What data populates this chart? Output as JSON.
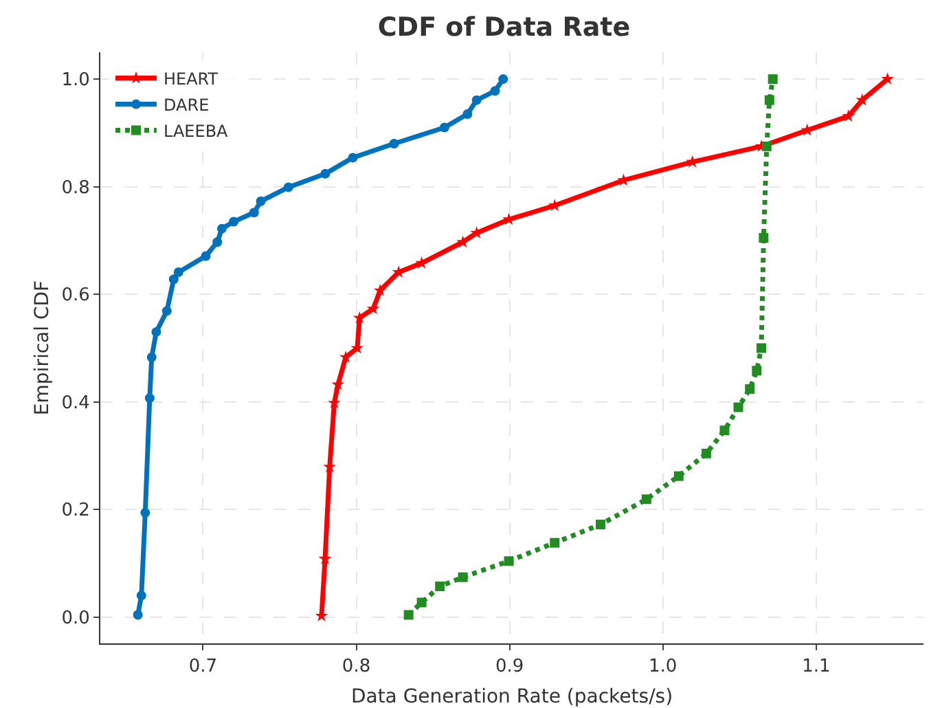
{
  "chart_data": {
    "type": "line",
    "title": "CDF of Data Rate",
    "xlabel": "Data Generation Rate (packets/s)",
    "ylabel": "Empirical CDF",
    "series": [
      {
        "name": "HEART",
        "color": "#ff0000",
        "marker": "star",
        "line_style": "solid",
        "x": [
          0.7773,
          0.7796,
          0.7826,
          0.7856,
          0.788,
          0.7931,
          0.8006,
          0.8021,
          0.811,
          0.8155,
          0.8276,
          0.8426,
          0.8695,
          0.8785,
          0.8995,
          0.9294,
          0.9743,
          1.0192,
          1.0642,
          1.0941,
          1.121,
          1.13,
          1.1465
        ],
        "values": [
          0.002,
          0.108,
          0.279,
          0.398,
          0.432,
          0.483,
          0.5,
          0.556,
          0.573,
          0.607,
          0.641,
          0.658,
          0.697,
          0.714,
          0.739,
          0.765,
          0.812,
          0.846,
          0.875,
          0.905,
          0.931,
          0.961,
          1.0
        ]
      },
      {
        "name": "DARE",
        "color": "#0072bd",
        "marker": "circle",
        "line_style": "solid",
        "x": [
          0.6575,
          0.6598,
          0.6623,
          0.6652,
          0.6665,
          0.6695,
          0.6764,
          0.6809,
          0.684,
          0.7018,
          0.7093,
          0.7123,
          0.72,
          0.7333,
          0.7377,
          0.7557,
          0.7797,
          0.7977,
          0.8246,
          0.8575,
          0.8725,
          0.8785,
          0.8905,
          0.8958
        ],
        "values": [
          0.004,
          0.04,
          0.194,
          0.407,
          0.483,
          0.53,
          0.569,
          0.628,
          0.641,
          0.671,
          0.697,
          0.722,
          0.735,
          0.752,
          0.773,
          0.799,
          0.824,
          0.854,
          0.88,
          0.91,
          0.935,
          0.961,
          0.978,
          1.0
        ]
      },
      {
        "name": "LAEEBA",
        "color": "#228b22",
        "marker": "square",
        "line_style": "dotted",
        "x": [
          0.8341,
          0.8426,
          0.8545,
          0.8695,
          0.8995,
          0.9294,
          0.9593,
          0.9893,
          1.0103,
          1.0283,
          1.0402,
          1.0492,
          1.0567,
          1.0612,
          1.0642,
          1.0657,
          1.0677,
          1.0695,
          1.0717
        ],
        "values": [
          0.004,
          0.027,
          0.057,
          0.074,
          0.104,
          0.138,
          0.172,
          0.219,
          0.262,
          0.304,
          0.347,
          0.39,
          0.424,
          0.458,
          0.5,
          0.705,
          0.875,
          0.961,
          1.0
        ]
      }
    ],
    "xlim": [
      0.633,
      1.17
    ],
    "ylim": [
      -0.049,
      1.05
    ],
    "xticks": [
      0.7,
      0.8,
      0.9,
      {
        "value": 1.0,
        "label": "1.0"
      },
      1.1
    ],
    "yticks": [
      {
        "value": 0,
        "label": "0.0"
      },
      0.2,
      0.4,
      0.6,
      0.8,
      {
        "value": 1.0,
        "label": "1.0"
      }
    ],
    "grid": true,
    "legend": "top left"
  }
}
